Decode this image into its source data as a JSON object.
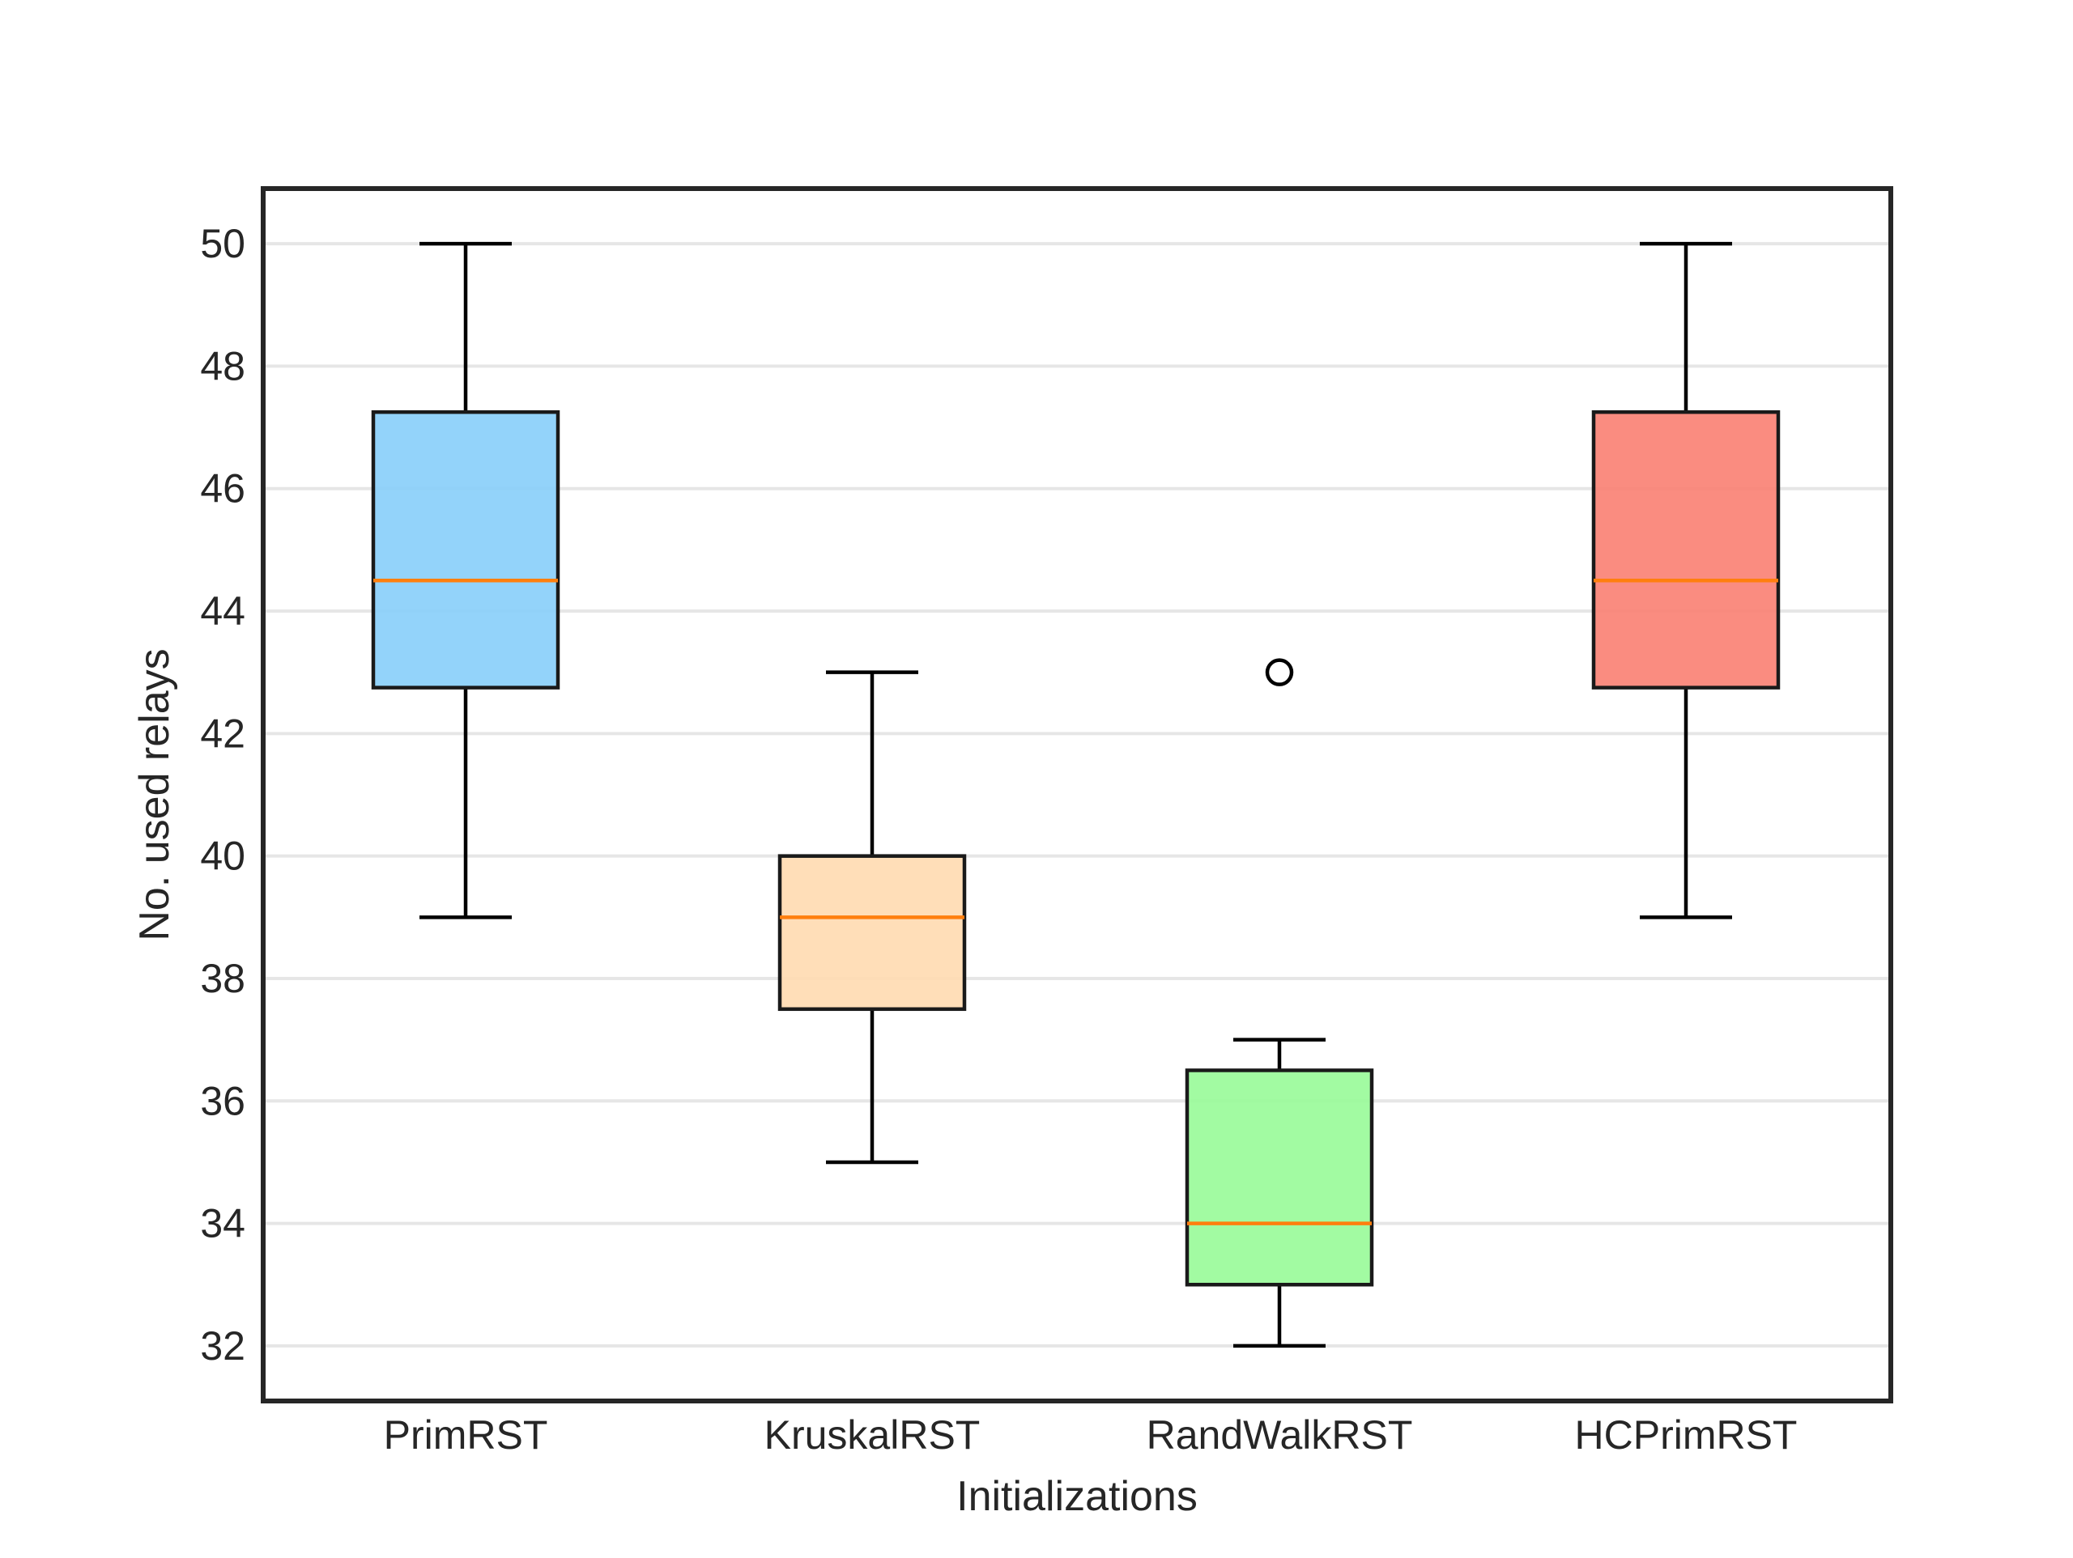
{
  "chart_data": {
    "type": "box",
    "title": "",
    "xlabel": "Initializations",
    "ylabel": "No. used relays",
    "ylim": [
      31.1,
      50.9
    ],
    "yticks": [
      32,
      34,
      36,
      38,
      40,
      42,
      44,
      46,
      48,
      50
    ],
    "grid": "horizontal",
    "categories": [
      "PrimRST",
      "KruskalRST",
      "RandWalkRST",
      "HCPrimRST"
    ],
    "boxes": [
      {
        "category": "PrimRST",
        "whisker_low": 39,
        "q1": 42.75,
        "median": 44.5,
        "q3": 47.25,
        "whisker_high": 50,
        "outliers": [],
        "color": "#87CEFA"
      },
      {
        "category": "KruskalRST",
        "whisker_low": 35,
        "q1": 37.5,
        "median": 39,
        "q3": 40,
        "whisker_high": 43,
        "outliers": [],
        "color": "#FFDAB0"
      },
      {
        "category": "RandWalkRST",
        "whisker_low": 32,
        "q1": 33,
        "median": 34,
        "q3": 36.5,
        "whisker_high": 37,
        "outliers": [
          43
        ],
        "color": "#98FB98"
      },
      {
        "category": "HCPrimRST",
        "whisker_low": 39,
        "q1": 42.75,
        "median": 44.5,
        "q3": 47.25,
        "whisker_high": 50,
        "outliers": [],
        "color": "#FA8072"
      }
    ],
    "median_color": "#FF7F0E",
    "grid_color": "#E6E6E6",
    "frame_color": "#262626"
  }
}
